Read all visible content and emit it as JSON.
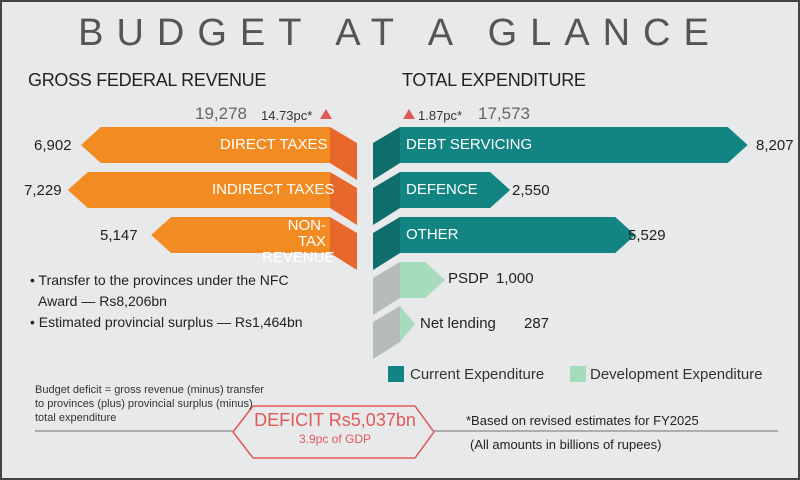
{
  "title": "BUDGET AT A GLANCE",
  "colors": {
    "revenue": "#f28c22",
    "revenue_fold": "#e8672a",
    "current": "#128482",
    "development": "#a6dcbc",
    "fold_gray": "#b7bcb8",
    "accent": "#e05a5a"
  },
  "revenue": {
    "heading": "GROSS FEDERAL REVENUE",
    "total": "19,278",
    "change": "14.73pc*"
  },
  "expenditure": {
    "heading": "TOTAL EXPENDITURE",
    "total": "17,573",
    "change": "1.87pc*"
  },
  "notes": [
    "• Transfer to the provinces under the NFC",
    "Award — Rs8,206bn",
    "• Estimated provincial surplus — Rs1,464bn"
  ],
  "legend": {
    "current": "Current Expenditure",
    "development": "Development Expenditure"
  },
  "deficit": {
    "formula": [
      "Budget deficit = gross revenue (minus) transfer",
      "to provinces (plus) provincial surplus (minus)",
      "total expenditure"
    ],
    "label": "DEFICIT  Rs5,037bn",
    "gdp": "3.9pc of GDP"
  },
  "footnotes": {
    "basis": "*Based on revised estimates for FY2025",
    "units": "(All amounts in billions of rupees)"
  },
  "chart_data": [
    {
      "type": "bar",
      "title": "GROSS FEDERAL REVENUE",
      "categories": [
        "DIRECT TAXES",
        "INDIRECT TAXES",
        "NON-TAX REVENUE"
      ],
      "values": [
        6902,
        7229,
        5147
      ],
      "value_labels": [
        "6,902",
        "7,229",
        "5,147"
      ],
      "total": 19278,
      "change_pc": 14.73
    },
    {
      "type": "bar",
      "title": "TOTAL EXPENDITURE",
      "categories": [
        "DEBT SERVICING",
        "DEFENCE",
        "OTHER",
        "PSDP",
        "Net lending"
      ],
      "values": [
        8207,
        2550,
        5529,
        1000,
        287
      ],
      "value_labels": [
        "8,207",
        "2,550",
        "5,529",
        "1,000",
        "287"
      ],
      "groups": [
        "current",
        "current",
        "current",
        "development",
        "development"
      ],
      "total": 17573,
      "change_pc": 1.87
    }
  ]
}
